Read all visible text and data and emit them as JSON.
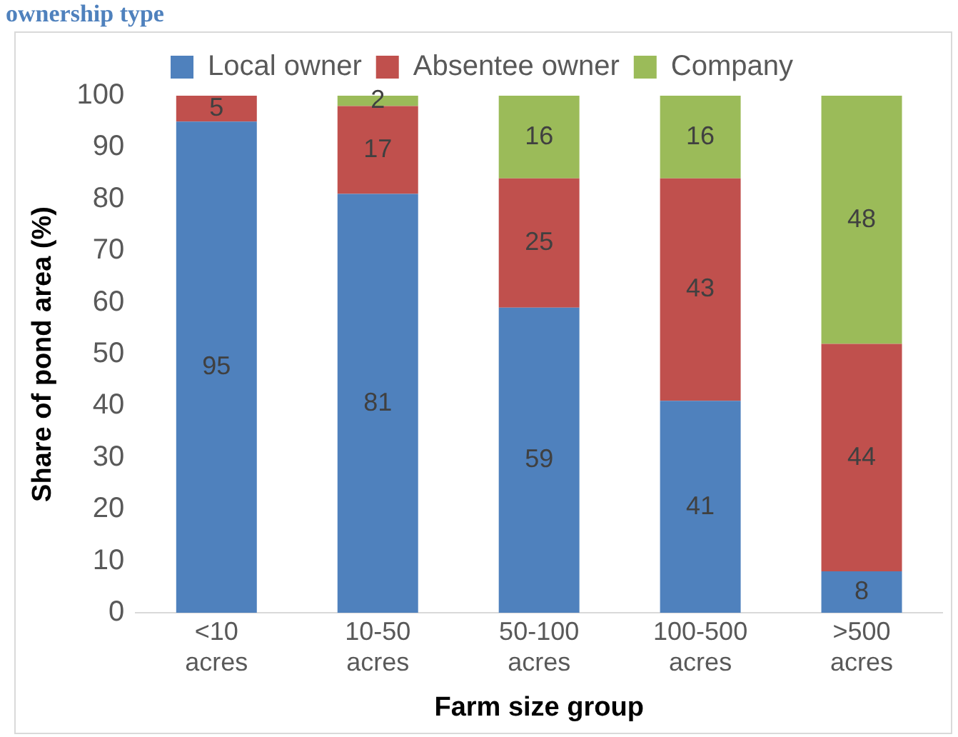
{
  "chart_data": {
    "type": "bar",
    "title": "ownership type",
    "xlabel": "Farm size group",
    "ylabel": "Share of pond area (%)",
    "categories": [
      "<10 acres",
      "10-50 acres",
      "50-100 acres",
      "100-500 acres",
      ">500 acres"
    ],
    "series": [
      {
        "name": "Local owner",
        "color": "#4f81bd",
        "values": [
          95,
          81,
          59,
          41,
          8
        ]
      },
      {
        "name": "Absentee owner",
        "color": "#c0504d",
        "values": [
          5,
          17,
          25,
          43,
          44
        ]
      },
      {
        "name": "Company",
        "color": "#9bbb59",
        "values": [
          null,
          2,
          16,
          16,
          48
        ]
      }
    ],
    "stacked": true,
    "ylim": [
      0,
      100
    ],
    "yticks": [
      0,
      10,
      20,
      30,
      40,
      50,
      60,
      70,
      80,
      90,
      100
    ],
    "grid": false,
    "legend": "top",
    "data_labels": true
  }
}
